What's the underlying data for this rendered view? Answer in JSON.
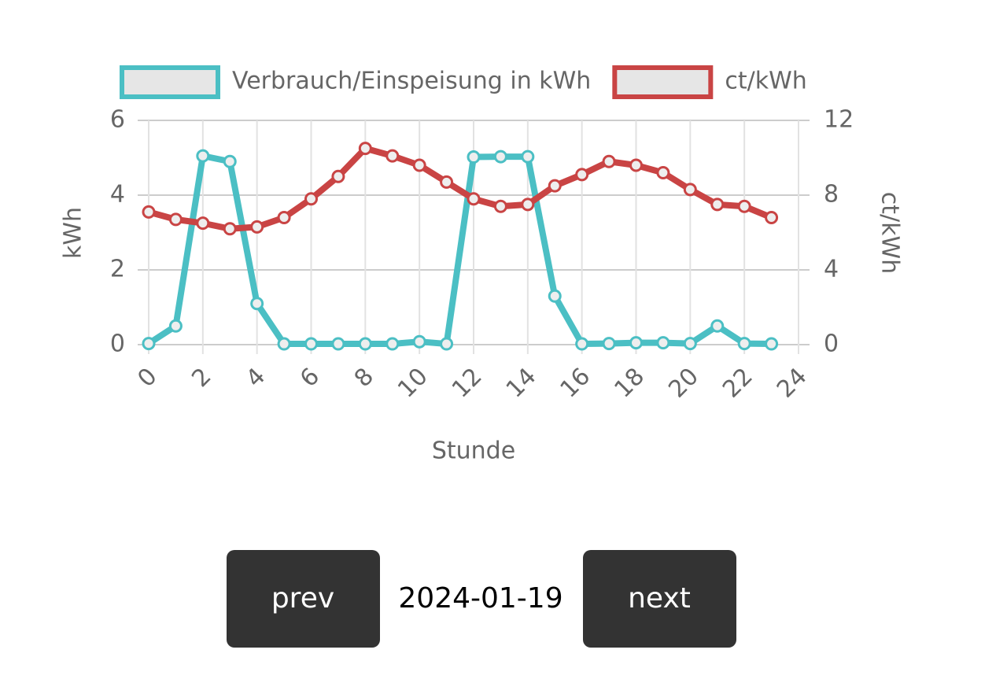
{
  "chart_data": {
    "type": "line",
    "x": [
      0,
      1,
      2,
      3,
      4,
      5,
      6,
      7,
      8,
      9,
      10,
      11,
      12,
      13,
      14,
      15,
      16,
      17,
      18,
      19,
      20,
      21,
      22,
      23
    ],
    "series": [
      {
        "name": "Verbrauch/Einspeisung in kWh",
        "color": "#4bbfc4",
        "values": [
          0.03,
          0.5,
          5.05,
          4.9,
          1.1,
          0.02,
          0.02,
          0.02,
          0.02,
          0.02,
          0.08,
          0.02,
          5.02,
          5.03,
          5.03,
          1.3,
          0.02,
          0.03,
          0.05,
          0.05,
          0.03,
          0.5,
          0.03,
          0.02
        ]
      },
      {
        "name": "ct/kWh",
        "color": "#c94444",
        "axis": "y2",
        "values": [
          7.1,
          6.7,
          6.5,
          6.2,
          6.3,
          6.8,
          7.8,
          9.0,
          10.5,
          10.1,
          9.6,
          8.7,
          7.8,
          7.4,
          7.5,
          8.5,
          9.1,
          9.8,
          9.6,
          9.2,
          8.3,
          7.5,
          7.4,
          6.8
        ]
      }
    ],
    "xlabel": "Stunde",
    "ylabel": "kWh",
    "y2label": "ct/kWh",
    "xlim": [
      0,
      24
    ],
    "xticks": [
      0,
      2,
      4,
      6,
      8,
      10,
      12,
      14,
      16,
      18,
      20,
      22,
      24
    ],
    "ylim": [
      0,
      6
    ],
    "yticks": [
      0,
      2,
      4,
      6
    ],
    "y2lim": [
      0,
      12
    ],
    "y2ticks": [
      0,
      4,
      8,
      12
    ],
    "grid": true,
    "legend": "top"
  },
  "navigation": {
    "prev": "prev",
    "date": "2024-01-19",
    "next": "next"
  }
}
